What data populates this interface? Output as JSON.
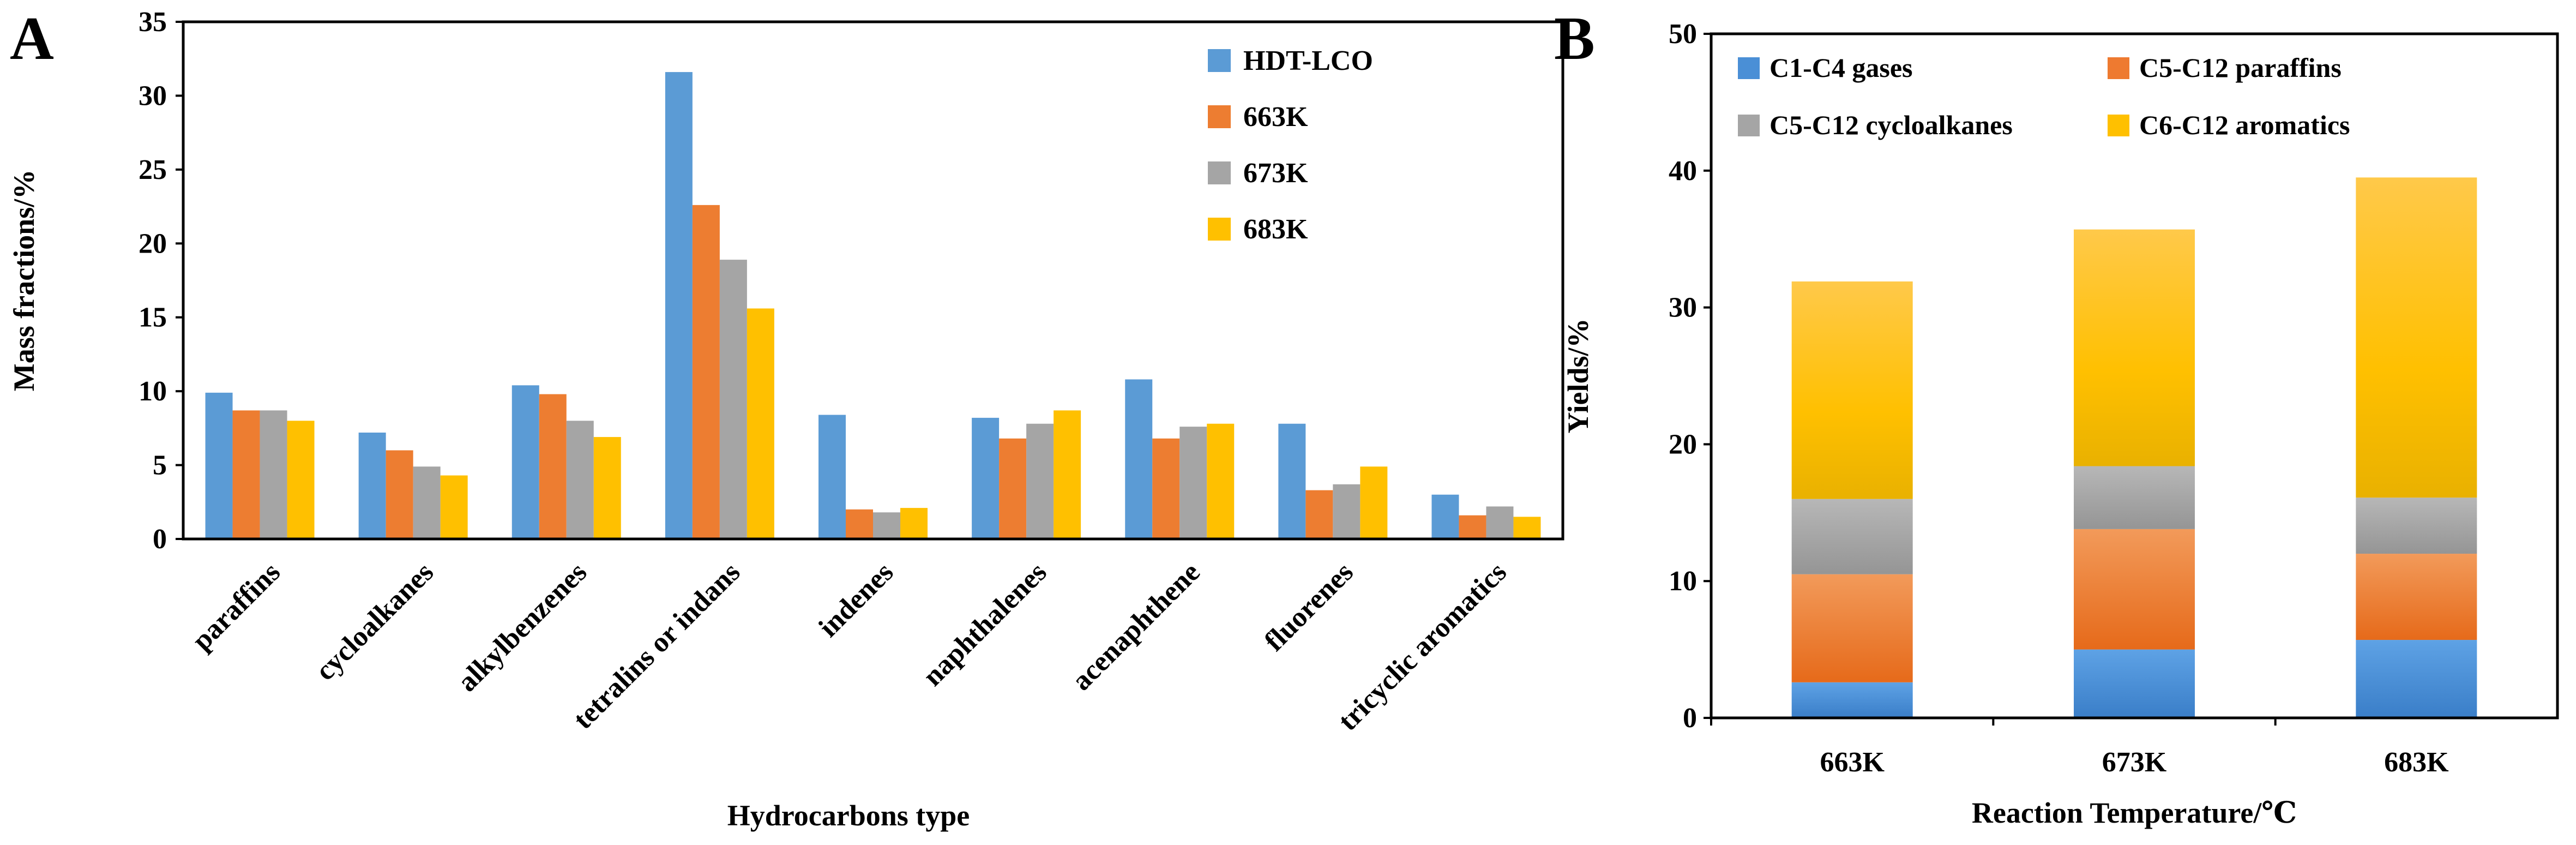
{
  "chart_data": [
    {
      "panel": "A",
      "type": "bar",
      "xlabel": "Hydrocarbons type",
      "ylabel": "Mass fractions/%",
      "ylim": [
        0,
        35
      ],
      "yticks": [
        0,
        5,
        10,
        15,
        20,
        25,
        30,
        35
      ],
      "legend_position": "top-right",
      "grid": false,
      "categories": [
        "paraffins",
        "cycloalkanes",
        "alkylbenzenes",
        "tetralins or indans",
        "indenes",
        "naphthalenes",
        "acenaphthene",
        "fluorenes",
        "tricyclic aromatics"
      ],
      "series": [
        {
          "name": "HDT-LCO",
          "color": "#5B9BD5",
          "values": [
            9.9,
            7.2,
            10.4,
            31.6,
            8.4,
            8.2,
            10.8,
            7.8,
            3.0
          ]
        },
        {
          "name": "663K",
          "color": "#ED7D31",
          "values": [
            8.7,
            6.0,
            9.8,
            22.6,
            2.0,
            6.8,
            6.8,
            3.3,
            1.6
          ]
        },
        {
          "name": "673K",
          "color": "#A5A5A5",
          "values": [
            8.7,
            4.9,
            8.0,
            18.9,
            1.8,
            7.8,
            7.6,
            3.7,
            2.2
          ]
        },
        {
          "name": "683K",
          "color": "#FFC000",
          "values": [
            8.0,
            4.3,
            6.9,
            15.6,
            2.1,
            8.7,
            7.8,
            4.9,
            1.5
          ]
        }
      ]
    },
    {
      "panel": "B",
      "type": "bar",
      "stacked": true,
      "xlabel": "Reaction Temperature/℃",
      "ylabel": "Yields/%",
      "ylim": [
        0,
        50
      ],
      "yticks": [
        0,
        10,
        20,
        30,
        40,
        50
      ],
      "legend_position": "top",
      "grid": false,
      "categories": [
        "663K",
        "673K",
        "683K"
      ],
      "series": [
        {
          "name": "C1-C4 gases",
          "color": "#4A8FD6",
          "values": [
            2.6,
            5.0,
            5.7
          ]
        },
        {
          "name": "C5-C12 paraffins",
          "color": "#EE7A30",
          "values": [
            7.9,
            8.8,
            6.3
          ]
        },
        {
          "name": "C5-C12 cycloalkanes",
          "color": "#A5A5A5",
          "values": [
            5.5,
            4.6,
            4.1
          ]
        },
        {
          "name": "C6-C12 aromatics",
          "color": "#FFC000",
          "values": [
            15.9,
            17.3,
            23.4
          ]
        }
      ]
    }
  ]
}
